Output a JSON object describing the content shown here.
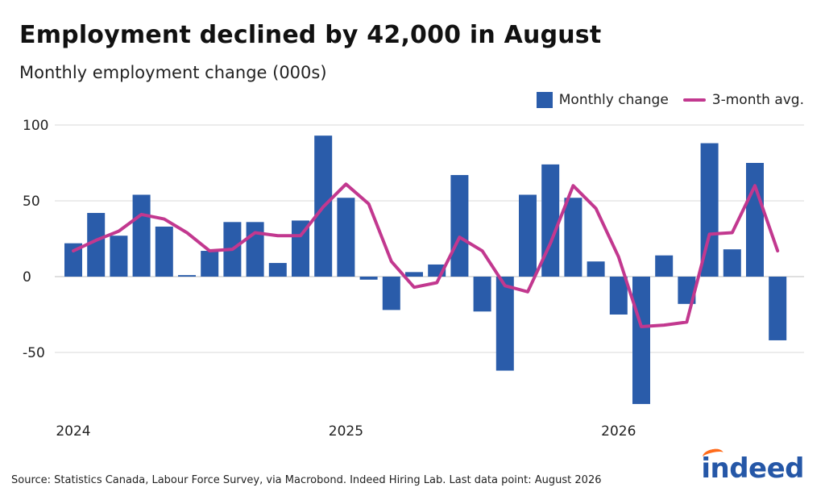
{
  "header": {
    "title": "Employment declined by 42,000 in August",
    "subtitle": "Monthly employment change (000s)"
  },
  "legend": {
    "bar_label": "Monthly change",
    "line_label": "3-month avg."
  },
  "footer": {
    "source": "Source: Statistics Canada, Labour Force Survey, via Macrobond. Indeed Hiring Lab. Last data point: August 2026",
    "logo_text": "indeed"
  },
  "colors": {
    "bar": "#2a5caa",
    "line": "#c2388f",
    "grid": "#d9d9d9",
    "logo": "#2557a7",
    "logo_accent": "#ff6b1a"
  },
  "chart_data": {
    "type": "bar",
    "ylim": [
      -90,
      100
    ],
    "yticks": [
      100,
      50,
      0,
      -50
    ],
    "ytick_labels": [
      "100",
      "50",
      "0",
      "-50"
    ],
    "xtick_labels": [
      "2024",
      "2025",
      "2026"
    ],
    "xtick_month_index": [
      0,
      12,
      24
    ],
    "grid": true,
    "legend_position": "top-right",
    "series": [
      {
        "name": "Monthly change",
        "type": "bar",
        "values": [
          22,
          42,
          27,
          54,
          33,
          1,
          17,
          36,
          36,
          9,
          37,
          93,
          52,
          -2,
          -22,
          3,
          8,
          67,
          -23,
          -62,
          54,
          74,
          52,
          10,
          -25,
          -84,
          14,
          -18,
          88,
          18,
          75,
          -42
        ]
      },
      {
        "name": "3-month avg.",
        "type": "line",
        "values": [
          17,
          24,
          30,
          41,
          38,
          29,
          17,
          18,
          29,
          27,
          27,
          46,
          61,
          48,
          10,
          -7,
          -4,
          26,
          17,
          -6,
          -10,
          22,
          60,
          45,
          13,
          -33,
          -32,
          -30,
          28,
          29,
          60,
          17
        ]
      }
    ]
  }
}
